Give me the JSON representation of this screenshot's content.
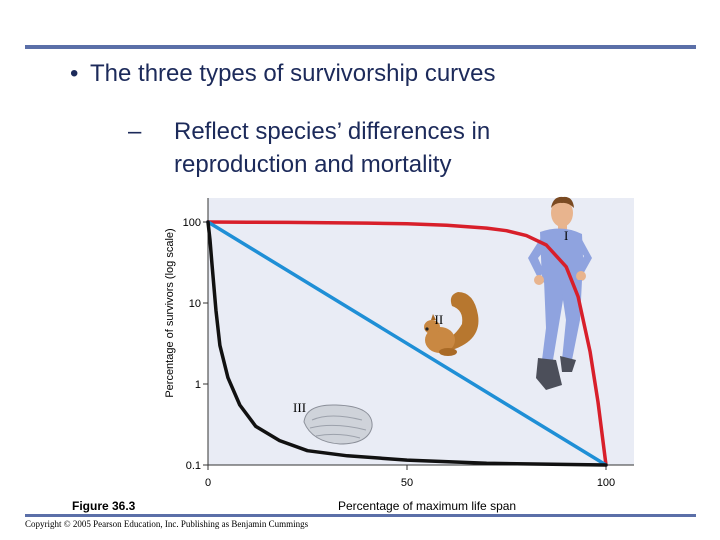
{
  "slide": {
    "bullet": "The three types of survivorship curves",
    "bullet_marker": "•",
    "sub_dash": "–",
    "sub_bullet": "Reflect species’ differences in reproduction and mortality",
    "figure_label": "Figure 36.3",
    "copyright": "Copyright © 2005 Pearson Education, Inc. Publishing as Benjamin Cummings"
  },
  "colors": {
    "rule": "#5b6fa8",
    "type_I": "#d81f2a",
    "type_II": "#1f8fd6",
    "type_III": "#111111",
    "plot_bg": "#e9ecf5"
  },
  "chart_data": {
    "type": "line",
    "xlabel": "Percentage of maximum life span",
    "ylabel": "Percentage of survivors (log scale)",
    "xlim": [
      0,
      100
    ],
    "ylim": [
      0.1,
      100
    ],
    "yscale": "log",
    "x_ticks": [
      "0",
      "50",
      "100"
    ],
    "y_ticks": [
      "100",
      "10",
      "1",
      "0.1"
    ],
    "grid": false,
    "series": [
      {
        "name": "I",
        "color": "#d81f2a",
        "x": [
          0,
          10,
          20,
          30,
          40,
          50,
          60,
          70,
          75,
          80,
          85,
          90,
          93,
          96,
          98,
          100
        ],
        "y": [
          100,
          99.5,
          99,
          98,
          97,
          95,
          91,
          84,
          78,
          68,
          52,
          28,
          12,
          2.5,
          0.6,
          0.1
        ]
      },
      {
        "name": "II",
        "color": "#1f8fd6",
        "x": [
          0,
          100
        ],
        "y": [
          100,
          0.1
        ]
      },
      {
        "name": "III",
        "color": "#111111",
        "x": [
          0,
          0.5,
          1,
          2,
          3,
          5,
          8,
          12,
          18,
          25,
          35,
          50,
          70,
          100
        ],
        "y": [
          100,
          60,
          30,
          8,
          3,
          1.2,
          0.55,
          0.3,
          0.2,
          0.15,
          0.13,
          0.115,
          0.105,
          0.1
        ]
      }
    ],
    "curve_labels": [
      {
        "text": "I",
        "x": 90,
        "y": 60
      },
      {
        "text": "II",
        "x": 58,
        "y": 5.5
      },
      {
        "text": "III",
        "x": 23,
        "y": 0.45
      }
    ]
  }
}
